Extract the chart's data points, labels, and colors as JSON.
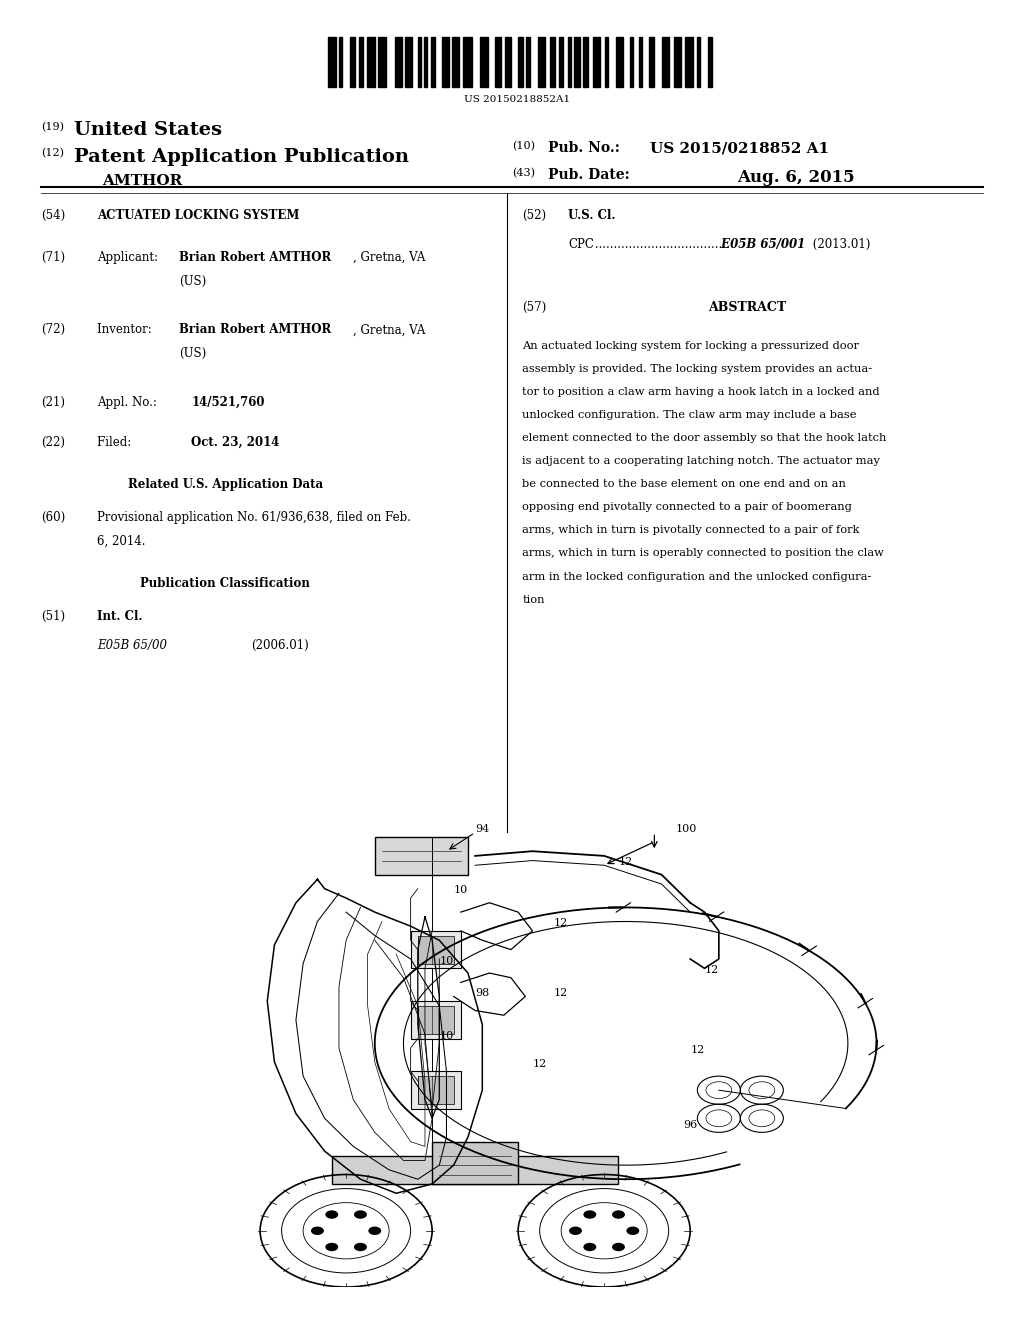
{
  "background_color": "#ffffff",
  "barcode_text": "US 20150218852A1",
  "header": {
    "number_19": "(19)",
    "united_states": "United States",
    "number_12": "(12)",
    "patent_app_pub": "Patent Application Publication",
    "applicant_name": "AMTHOR",
    "number_10": "(10)",
    "pub_no_label": "Pub. No.:",
    "pub_no_value": "US 2015/0218852 A1",
    "number_43": "(43)",
    "pub_date_label": "Pub. Date:",
    "pub_date_value": "Aug. 6, 2015"
  },
  "left_column": {
    "54_label": "(54)",
    "54_text": "ACTUATED LOCKING SYSTEM",
    "71_label": "(71)",
    "72_label": "(72)",
    "21_label": "(21)",
    "21_text": "14/521,760",
    "22_label": "(22)",
    "22_text": "Oct. 23, 2014",
    "related_header": "Related U.S. Application Data",
    "60_label": "(60)",
    "60_line1": "Provisional application No. 61/936,638, filed on Feb.",
    "60_line2": "6, 2014.",
    "pub_class_header": "Publication Classification",
    "51_label": "(51)",
    "51_int_cl": "Int. Cl.",
    "51_code": "E05B 65/00",
    "51_year": "(2006.01)"
  },
  "right_column": {
    "52_label": "(52)",
    "52_us_cl": "U.S. Cl.",
    "52_cpc_label": "CPC",
    "52_cpc_dots": " ....................................",
    "52_cpc_code": " E05B 65/001",
    "52_cpc_year": " (2013.01)",
    "57_label": "(57)",
    "57_abstract": "ABSTRACT",
    "abstract_lines": [
      "An actuated locking system for locking a pressurized door",
      "assembly is provided. The locking system provides an actua-",
      "tor to position a claw arm having a hook latch in a locked and",
      "unlocked configuration. The claw arm may include a base",
      "element connected to the door assembly so that the hook latch",
      "is adjacent to a cooperating latching notch. The actuator may",
      "be connected to the base element on one end and on an",
      "opposing end pivotally connected to a pair of boomerang",
      "arms, which in turn is pivotally connected to a pair of fork",
      "arms, which in turn is operably connected to position the claw",
      "arm in the locked configuration and the unlocked configura-",
      "tion"
    ]
  }
}
